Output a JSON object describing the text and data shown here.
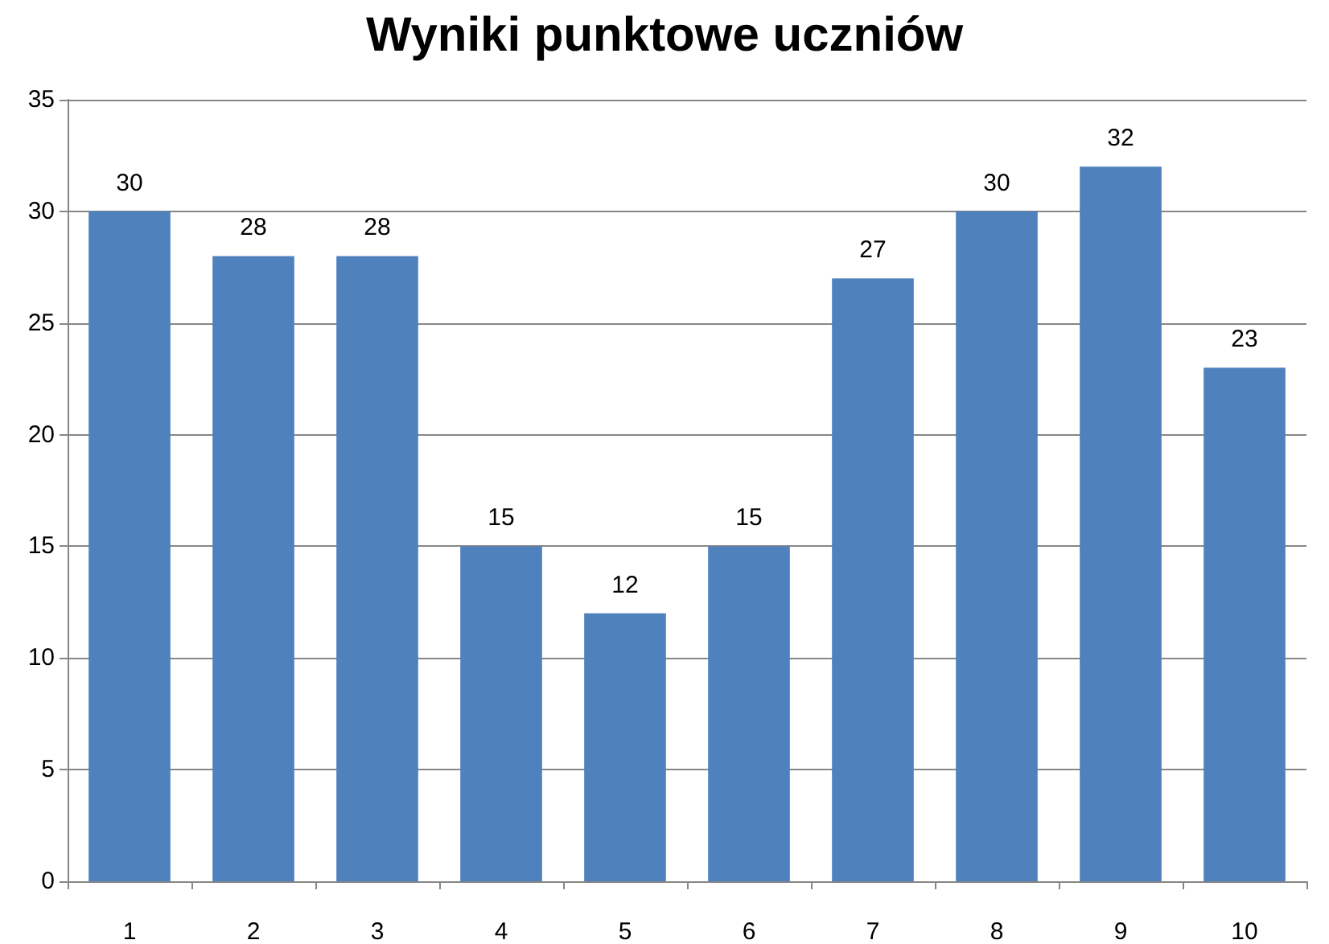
{
  "chart_data": {
    "type": "bar",
    "title": "Wyniki punktowe uczniów",
    "categories": [
      "1",
      "2",
      "3",
      "4",
      "5",
      "6",
      "7",
      "8",
      "9",
      "10"
    ],
    "values": [
      30,
      28,
      28,
      15,
      12,
      15,
      27,
      30,
      32,
      23
    ],
    "color": "#4f81bd",
    "ylim": [
      0,
      35
    ],
    "yticks": [
      0,
      5,
      10,
      15,
      20,
      25,
      30,
      35
    ],
    "grid": "y",
    "data_labels": true
  }
}
